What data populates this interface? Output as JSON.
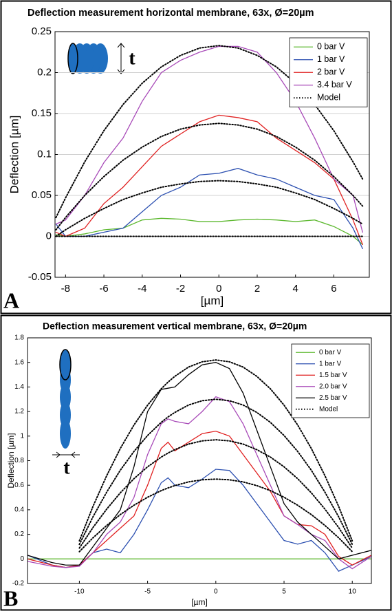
{
  "chart_data": [
    {
      "type": "line",
      "panel_label": "A",
      "title": "Deflection measurement horizontal membrane, 63x, Ø=20µm",
      "ylabel": "Deflection [µm]",
      "xlabel": "[µm]",
      "icon_label": "t",
      "xlim": [
        -8.55,
        7.85
      ],
      "xticks": [
        -8,
        -6,
        -4,
        -2,
        0,
        2,
        4,
        6
      ],
      "ylim": [
        -0.05,
        0.25
      ],
      "yticks": [
        -0.05,
        0,
        0.05,
        0.1,
        0.15,
        0.2,
        0.25
      ],
      "grid": true,
      "legend": "upper right",
      "x": [
        -8.5,
        -8,
        -7,
        -6,
        -5,
        -4,
        -3,
        -2,
        -1,
        0,
        1,
        2,
        3,
        4,
        5,
        6,
        7,
        7.5
      ],
      "series": [
        {
          "name": "0 bar V",
          "color": "#5cb82e",
          "dash": "solid",
          "values": [
            0.002,
            0,
            0.003,
            0.008,
            0.01,
            0.02,
            0.022,
            0.021,
            0.018,
            0.018,
            0.02,
            0.021,
            0.02,
            0.018,
            0.02,
            0.012,
            0,
            -0.01
          ]
        },
        {
          "name": "1 bar V",
          "color": "#2b4fb0",
          "dash": "solid",
          "values": [
            0.015,
            0,
            0,
            0.005,
            0.01,
            0.03,
            0.05,
            0.06,
            0.075,
            0.077,
            0.083,
            0.075,
            0.07,
            0.06,
            0.05,
            0.045,
            0.01,
            -0.015
          ]
        },
        {
          "name": "2 bar V",
          "color": "#e02020",
          "dash": "solid",
          "values": [
            0.005,
            0,
            0.01,
            0.04,
            0.06,
            0.085,
            0.11,
            0.125,
            0.14,
            0.148,
            0.145,
            0.14,
            0.12,
            0.105,
            0.09,
            0.07,
            0.02,
            -0.01
          ]
        },
        {
          "name": "3.4 bar V",
          "color": "#a84ab8",
          "dash": "solid",
          "values": [
            0.015,
            0.02,
            0.05,
            0.09,
            0.12,
            0.165,
            0.2,
            0.215,
            0.225,
            0.232,
            0.232,
            0.225,
            0.2,
            0.165,
            0.12,
            0.07,
            0.05,
            0.005
          ]
        },
        {
          "name": "Model",
          "color": "#000000",
          "dash": "dotted",
          "values": [
            0.023,
            0.047,
            0.091,
            0.129,
            0.161,
            0.187,
            0.207,
            0.221,
            0.23,
            0.233,
            0.23,
            0.221,
            0.207,
            0.187,
            0.161,
            0.129,
            0.091,
            0.07
          ]
        },
        {
          "color": "#000000",
          "dash": "dotted",
          "values": [
            0.008,
            0.023,
            0.05,
            0.073,
            0.093,
            0.109,
            0.122,
            0.131,
            0.136,
            0.138,
            0.136,
            0.131,
            0.122,
            0.109,
            0.093,
            0.073,
            0.05,
            0.037
          ]
        },
        {
          "color": "#000000",
          "dash": "dotted",
          "values": [
            0,
            0.008,
            0.022,
            0.034,
            0.045,
            0.053,
            0.06,
            0.064,
            0.067,
            0.068,
            0.067,
            0.064,
            0.06,
            0.053,
            0.045,
            0.034,
            0.022,
            0.015
          ]
        },
        {
          "color": "#000000",
          "dash": "dotted",
          "values": [
            0,
            0,
            0,
            0,
            0,
            0,
            0,
            0,
            0,
            0,
            0,
            0,
            0,
            0,
            0,
            0,
            0,
            0
          ]
        }
      ]
    },
    {
      "type": "line",
      "panel_label": "B",
      "title": "Deflection measurement vertical membrane, 63x, Ø=20µm",
      "ylabel": "Deflection [µm]",
      "xlabel": "[µm]",
      "icon_label": "t",
      "xlim": [
        -13.8,
        11.4
      ],
      "xticks": [
        -10,
        -5,
        0,
        5,
        10
      ],
      "ylim": [
        -0.2,
        1.8
      ],
      "yticks": [
        -0.2,
        0,
        0.2,
        0.4,
        0.6,
        0.8,
        1,
        1.2,
        1.4,
        1.6,
        1.8
      ],
      "grid": false,
      "legend": "upper right",
      "x": [
        -13.8,
        -12,
        -11,
        -10,
        -9,
        -8,
        -7,
        -6,
        -5,
        -4,
        -3.5,
        -3,
        -2,
        -1,
        0,
        1,
        2,
        3,
        4,
        5,
        6,
        7,
        8,
        9,
        10,
        11.4
      ],
      "series": [
        {
          "name": "0 bar V",
          "color": "#5cb82e",
          "dash": "solid",
          "values": [
            0,
            0,
            0,
            0,
            0,
            0,
            0,
            0,
            0,
            0,
            0,
            0,
            0,
            0,
            0,
            0,
            0,
            0,
            0,
            0,
            0,
            0,
            0,
            0,
            0,
            0
          ]
        },
        {
          "name": "1 bar V",
          "color": "#2b4fb0",
          "dash": "solid",
          "values": [
            0.03,
            -0.05,
            -0.07,
            -0.05,
            0.05,
            0.08,
            0.05,
            0.2,
            0.4,
            0.62,
            0.66,
            0.6,
            0.58,
            0.65,
            0.73,
            0.72,
            0.6,
            0.45,
            0.3,
            0.15,
            0.12,
            0.15,
            0.05,
            -0.1,
            -0.05,
            0.02
          ]
        },
        {
          "name": "1.5 bar V",
          "color": "#e02020",
          "dash": "solid",
          "values": [
            0,
            -0.05,
            -0.07,
            -0.05,
            0.05,
            0.15,
            0.25,
            0.35,
            0.6,
            0.9,
            0.95,
            0.88,
            0.95,
            1.02,
            1.04,
            1.0,
            0.85,
            0.7,
            0.55,
            0.35,
            0.28,
            0.27,
            0.2,
            0.02,
            -0.05,
            0.03
          ]
        },
        {
          "name": "2.0 bar V",
          "color": "#a84ab8",
          "dash": "solid",
          "values": [
            -0.02,
            -0.06,
            -0.07,
            -0.06,
            0.05,
            0.2,
            0.3,
            0.5,
            0.85,
            1.1,
            1.14,
            1.12,
            1.1,
            1.2,
            1.32,
            1.28,
            1.1,
            0.85,
            0.6,
            0.35,
            0.28,
            0.2,
            0.15,
            0,
            -0.08,
            0.02
          ]
        },
        {
          "name": "2.5 bar V",
          "color": "#000000",
          "dash": "solid",
          "values": [
            0.03,
            -0.03,
            -0.05,
            -0.05,
            0.1,
            0.25,
            0.4,
            0.75,
            1.2,
            1.38,
            1.39,
            1.4,
            1.5,
            1.58,
            1.6,
            1.55,
            1.35,
            1.05,
            0.75,
            0.45,
            0.3,
            0.2,
            0.1,
            0,
            0.03,
            0.07
          ]
        },
        {
          "name": "Model",
          "color": "#000000",
          "dash": "dotted",
          "values": [
            null,
            null,
            null,
            0.147,
            0.428,
            0.677,
            0.899,
            1.09,
            1.252,
            1.385,
            1.44,
            1.487,
            1.562,
            1.605,
            1.62,
            1.605,
            1.562,
            1.487,
            1.385,
            1.252,
            1.09,
            0.899,
            0.677,
            0.428,
            0.147,
            null
          ]
        },
        {
          "color": "#000000",
          "dash": "dotted",
          "values": [
            null,
            null,
            null,
            0.118,
            0.343,
            0.543,
            0.722,
            0.875,
            1.005,
            1.112,
            1.156,
            1.193,
            1.253,
            1.288,
            1.3,
            1.288,
            1.253,
            1.193,
            1.112,
            1.005,
            0.875,
            0.722,
            0.543,
            0.343,
            0.118,
            null
          ]
        },
        {
          "color": "#000000",
          "dash": "dotted",
          "values": [
            null,
            null,
            null,
            0.088,
            0.256,
            0.405,
            0.538,
            0.653,
            0.75,
            0.829,
            0.862,
            0.89,
            0.935,
            0.961,
            0.97,
            0.961,
            0.935,
            0.89,
            0.829,
            0.75,
            0.653,
            0.538,
            0.405,
            0.256,
            0.088,
            null
          ]
        },
        {
          "color": "#000000",
          "dash": "dotted",
          "values": [
            null,
            null,
            null,
            0.059,
            0.172,
            0.272,
            0.361,
            0.437,
            0.502,
            0.556,
            0.578,
            0.597,
            0.627,
            0.644,
            0.65,
            0.644,
            0.627,
            0.597,
            0.556,
            0.502,
            0.437,
            0.361,
            0.272,
            0.172,
            0.059,
            null
          ]
        }
      ]
    }
  ]
}
